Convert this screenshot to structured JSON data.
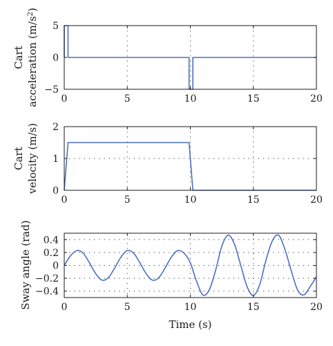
{
  "chart_data": [
    {
      "type": "line",
      "ylabel_lines": [
        "Cart",
        "acceleration (m/s",
        ")"
      ],
      "ylabel_sup": "2",
      "xlim": [
        0,
        20
      ],
      "ylim": [
        -5,
        5
      ],
      "xticks": [
        0,
        5,
        10,
        15,
        20
      ],
      "yticks": [
        5,
        0,
        -5
      ],
      "grid": true,
      "series": [
        {
          "color": "#4a6fc0",
          "x": [
            0,
            0,
            0.3,
            0.3,
            9.9,
            9.9,
            10.2,
            10.2,
            20
          ],
          "y": [
            0,
            5,
            5,
            0,
            0,
            -5,
            -5,
            0,
            0
          ]
        }
      ]
    },
    {
      "type": "line",
      "ylabel_lines": [
        "Cart",
        "velocity (m/s)"
      ],
      "xlim": [
        0,
        20
      ],
      "ylim": [
        0,
        2
      ],
      "xticks": [
        0,
        5,
        10,
        15,
        20
      ],
      "yticks": [
        2,
        1,
        0
      ],
      "grid": true,
      "series": [
        {
          "color": "#4a6fc0",
          "x": [
            0,
            0.3,
            9.9,
            10.2,
            20
          ],
          "y": [
            0,
            1.5,
            1.5,
            0,
            0
          ]
        }
      ]
    },
    {
      "type": "line",
      "ylabel_lines": [
        "Sway angle (rad)"
      ],
      "xlabel": "Time (s)",
      "xlim": [
        0,
        20
      ],
      "ylim": [
        -0.5,
        0.5
      ],
      "xticks": [
        0,
        5,
        10,
        15,
        20
      ],
      "yticks": [
        0.4,
        0.2,
        0,
        -0.2,
        -0.4
      ],
      "ytick_labels": [
        "0.4",
        "0.2",
        "0",
        "−0.2",
        "−0.4"
      ],
      "grid": true,
      "series": [
        {
          "color": "#4a6fc0",
          "x": [
            0,
            0.5,
            1.0,
            1.5,
            2.0,
            2.5,
            3.0,
            3.5,
            4.0,
            4.5,
            5.0,
            5.5,
            6.0,
            6.5,
            7.0,
            7.5,
            8.0,
            8.5,
            9.0,
            9.5,
            10.0,
            10.5,
            11.0,
            11.5,
            12.0,
            12.5,
            13.0,
            13.5,
            14.0,
            14.5,
            15.0,
            15.5,
            16.0,
            16.5,
            17.0,
            17.5,
            18.0,
            18.5,
            19.0,
            19.5,
            20.0
          ],
          "y": [
            0.0,
            0.15,
            0.23,
            0.19,
            0.04,
            -0.13,
            -0.23,
            -0.19,
            -0.04,
            0.13,
            0.23,
            0.19,
            0.04,
            -0.13,
            -0.23,
            -0.19,
            -0.04,
            0.13,
            0.23,
            0.19,
            0.04,
            -0.25,
            -0.46,
            -0.38,
            -0.08,
            0.3,
            0.47,
            0.33,
            0.0,
            -0.33,
            -0.47,
            -0.3,
            0.08,
            0.38,
            0.47,
            0.25,
            -0.08,
            -0.38,
            -0.46,
            -0.33,
            -0.18
          ]
        }
      ]
    }
  ]
}
